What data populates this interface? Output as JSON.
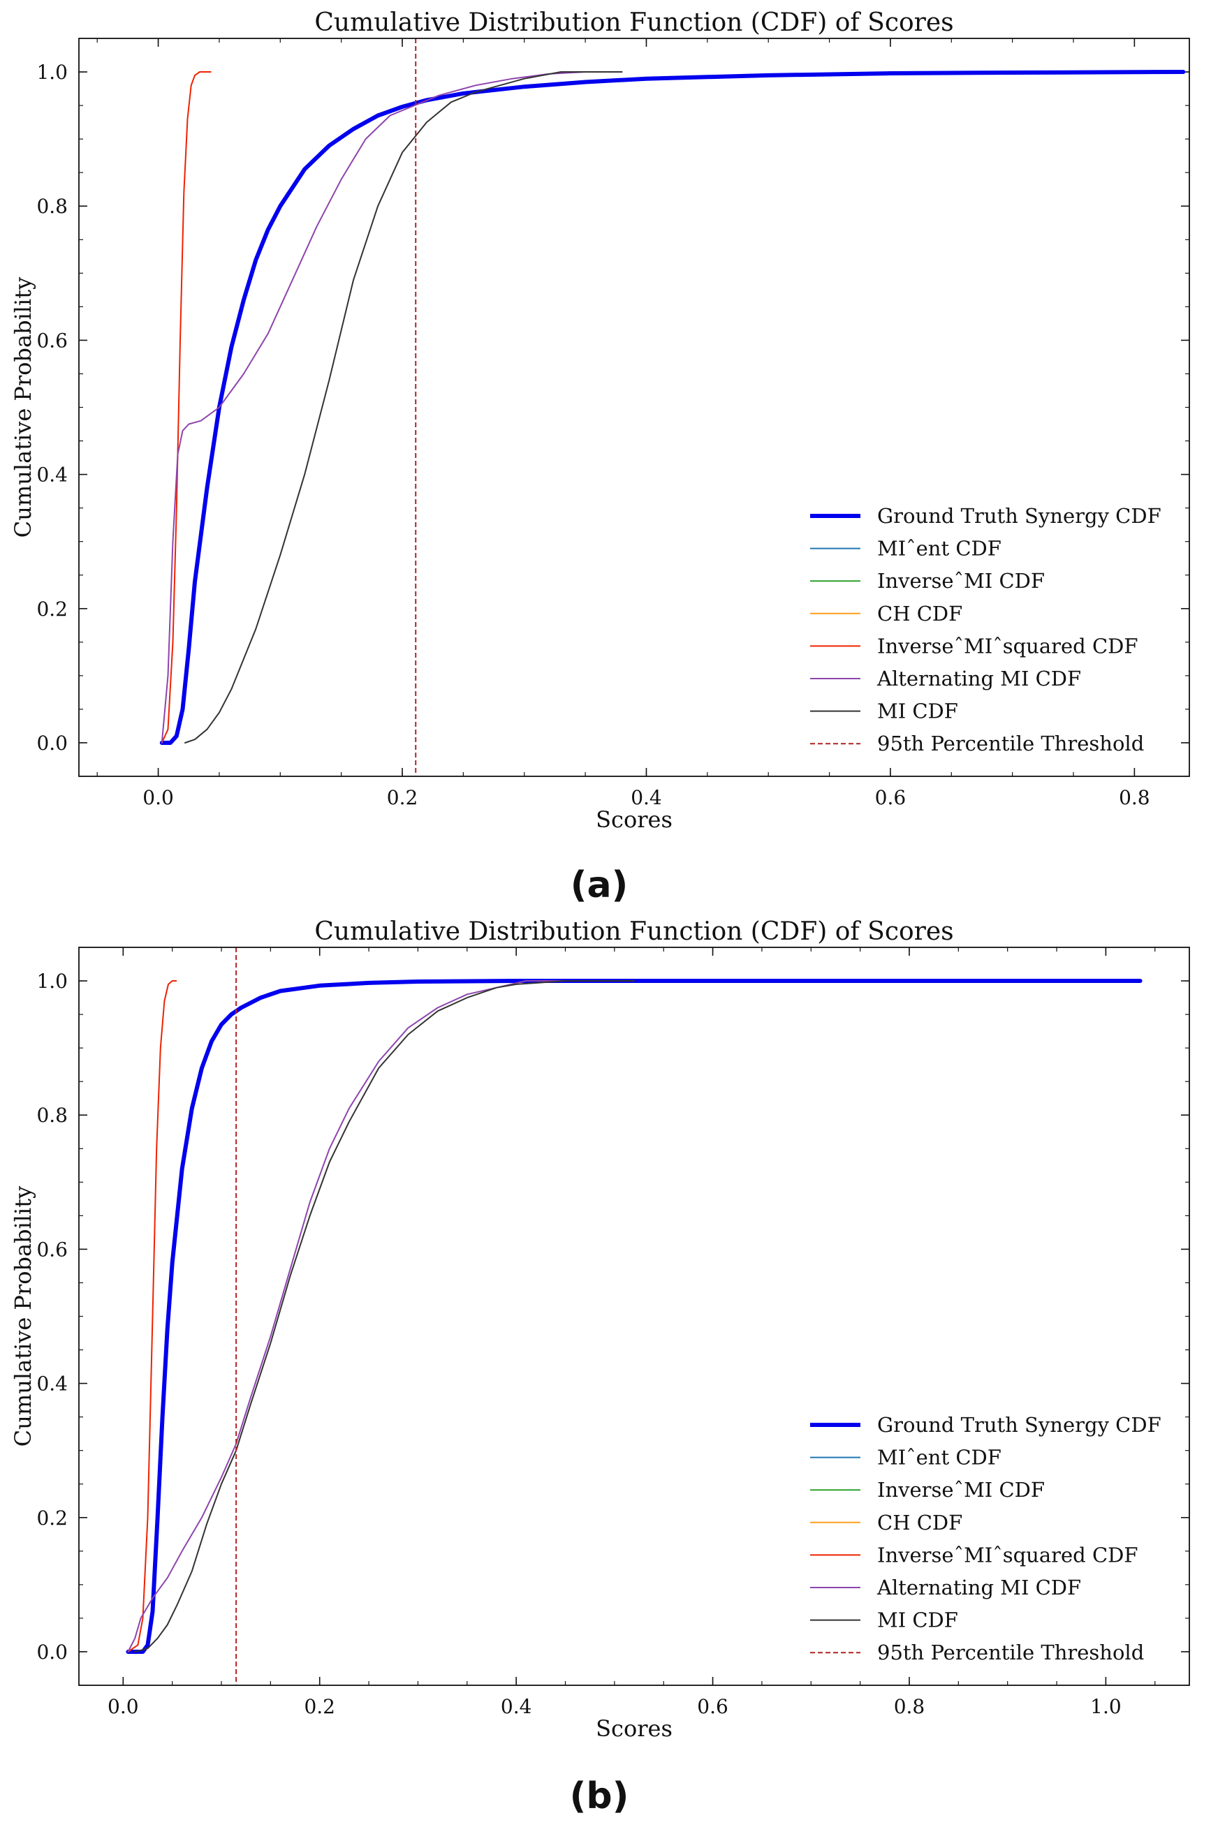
{
  "chart_data": [
    {
      "type": "line",
      "panel_label": "(a)",
      "title": "Cumulative Distribution Function (CDF) of Scores",
      "xlabel": "Scores",
      "ylabel": "Cumulative Probability",
      "xlim": [
        -0.065,
        0.845
      ],
      "ylim": [
        -0.05,
        1.05
      ],
      "xticks": [
        0.0,
        0.2,
        0.4,
        0.6,
        0.8
      ],
      "xtick_labels": [
        "0.0",
        "0.2",
        "0.4",
        "0.6",
        "0.8"
      ],
      "yticks": [
        0.0,
        0.2,
        0.4,
        0.6,
        0.8,
        1.0
      ],
      "ytick_labels": [
        "0.0",
        "0.2",
        "0.4",
        "0.6",
        "0.8",
        "1.0"
      ],
      "grid": false,
      "legend_position": "lower-right",
      "threshold": {
        "name": "95th Percentile Threshold",
        "x": 0.211,
        "color": "#b22222"
      },
      "series": [
        {
          "name": "Ground Truth Synergy CDF",
          "color": "#0000ee",
          "width": "thick",
          "x": [
            0.003,
            0.01,
            0.015,
            0.02,
            0.025,
            0.03,
            0.04,
            0.05,
            0.06,
            0.07,
            0.08,
            0.09,
            0.1,
            0.12,
            0.14,
            0.16,
            0.18,
            0.2,
            0.22,
            0.25,
            0.3,
            0.35,
            0.4,
            0.5,
            0.6,
            0.7,
            0.84
          ],
          "y": [
            0.0,
            0.0,
            0.01,
            0.05,
            0.14,
            0.24,
            0.38,
            0.5,
            0.59,
            0.66,
            0.72,
            0.765,
            0.8,
            0.855,
            0.89,
            0.915,
            0.935,
            0.948,
            0.958,
            0.968,
            0.978,
            0.985,
            0.99,
            0.995,
            0.998,
            0.999,
            1.0
          ]
        },
        {
          "name": "MIˆent CDF",
          "color": "#1f77b4",
          "width": "thin",
          "x": [],
          "y": []
        },
        {
          "name": "InverseˆMI CDF",
          "color": "#2ca02c",
          "width": "thin",
          "x": [],
          "y": []
        },
        {
          "name": "CH CDF",
          "color": "#ff9f1c",
          "width": "thin",
          "x": [],
          "y": []
        },
        {
          "name": "InverseˆMIˆsquared CDF",
          "color": "#ee2200",
          "width": "thin",
          "x": [
            0.003,
            0.008,
            0.012,
            0.015,
            0.018,
            0.021,
            0.024,
            0.027,
            0.03,
            0.034,
            0.038,
            0.043
          ],
          "y": [
            0.0,
            0.02,
            0.15,
            0.35,
            0.6,
            0.82,
            0.93,
            0.98,
            0.995,
            1.0,
            1.0,
            1.0
          ]
        },
        {
          "name": "Alternating MI CDF",
          "color": "#8e44ad",
          "width": "thin",
          "x": [
            0.003,
            0.008,
            0.012,
            0.016,
            0.02,
            0.025,
            0.035,
            0.05,
            0.07,
            0.09,
            0.11,
            0.13,
            0.15,
            0.17,
            0.19,
            0.21,
            0.23,
            0.26,
            0.29,
            0.32,
            0.35,
            0.38
          ],
          "y": [
            0.0,
            0.1,
            0.3,
            0.43,
            0.465,
            0.475,
            0.48,
            0.5,
            0.55,
            0.61,
            0.69,
            0.77,
            0.84,
            0.9,
            0.935,
            0.95,
            0.965,
            0.98,
            0.99,
            0.997,
            1.0,
            1.0
          ]
        },
        {
          "name": "MI CDF",
          "color": "#333333",
          "width": "thin",
          "x": [
            0.022,
            0.03,
            0.04,
            0.05,
            0.06,
            0.08,
            0.1,
            0.12,
            0.14,
            0.16,
            0.18,
            0.2,
            0.22,
            0.24,
            0.26,
            0.28,
            0.3,
            0.33,
            0.36,
            0.38
          ],
          "y": [
            0.0,
            0.005,
            0.02,
            0.045,
            0.08,
            0.17,
            0.28,
            0.4,
            0.54,
            0.69,
            0.8,
            0.88,
            0.925,
            0.955,
            0.97,
            0.98,
            0.99,
            1.0,
            1.0,
            1.0
          ]
        },
        {
          "name": "95th Percentile Threshold",
          "color": "#b22222",
          "width": "dashed",
          "legend_only": true,
          "x": [],
          "y": []
        }
      ]
    },
    {
      "type": "line",
      "panel_label": "(b)",
      "title": "Cumulative Distribution Function (CDF) of Scores",
      "xlabel": "Scores",
      "ylabel": "Cumulative Probability",
      "xlim": [
        -0.045,
        1.085
      ],
      "ylim": [
        -0.05,
        1.05
      ],
      "xticks": [
        0.0,
        0.2,
        0.4,
        0.6,
        0.8,
        1.0
      ],
      "xtick_labels": [
        "0.0",
        "0.2",
        "0.4",
        "0.6",
        "0.8",
        "1.0"
      ],
      "yticks": [
        0.0,
        0.2,
        0.4,
        0.6,
        0.8,
        1.0
      ],
      "ytick_labels": [
        "0.0",
        "0.2",
        "0.4",
        "0.6",
        "0.8",
        "1.0"
      ],
      "grid": false,
      "legend_position": "lower-right",
      "threshold": {
        "name": "95th Percentile Threshold",
        "x": 0.115,
        "color": "#b22222"
      },
      "series": [
        {
          "name": "Ground Truth Synergy CDF",
          "color": "#0000ee",
          "width": "thick",
          "x": [
            0.005,
            0.02,
            0.025,
            0.03,
            0.035,
            0.04,
            0.045,
            0.05,
            0.06,
            0.07,
            0.08,
            0.09,
            0.1,
            0.11,
            0.12,
            0.14,
            0.16,
            0.2,
            0.25,
            0.3,
            0.4,
            0.6,
            0.8,
            1.035
          ],
          "y": [
            0.0,
            0.0,
            0.01,
            0.06,
            0.2,
            0.35,
            0.48,
            0.58,
            0.72,
            0.81,
            0.87,
            0.91,
            0.935,
            0.95,
            0.96,
            0.975,
            0.985,
            0.993,
            0.997,
            0.999,
            1.0,
            1.0,
            1.0,
            1.0
          ]
        },
        {
          "name": "MIˆent CDF",
          "color": "#1f77b4",
          "width": "thin",
          "x": [],
          "y": []
        },
        {
          "name": "InverseˆMI CDF",
          "color": "#2ca02c",
          "width": "thin",
          "x": [],
          "y": []
        },
        {
          "name": "CH CDF",
          "color": "#ff9f1c",
          "width": "thin",
          "x": [],
          "y": []
        },
        {
          "name": "InverseˆMIˆsquared CDF",
          "color": "#ee2200",
          "width": "thin",
          "x": [
            0.005,
            0.015,
            0.02,
            0.025,
            0.03,
            0.034,
            0.038,
            0.042,
            0.046,
            0.05,
            0.054
          ],
          "y": [
            0.0,
            0.01,
            0.05,
            0.2,
            0.5,
            0.75,
            0.9,
            0.97,
            0.995,
            1.0,
            1.0
          ]
        },
        {
          "name": "Alternating MI CDF",
          "color": "#8e44ad",
          "width": "thin",
          "x": [
            0.005,
            0.012,
            0.018,
            0.022,
            0.03,
            0.045,
            0.06,
            0.08,
            0.1,
            0.115,
            0.13,
            0.15,
            0.17,
            0.19,
            0.21,
            0.23,
            0.26,
            0.29,
            0.32,
            0.35,
            0.38,
            0.41,
            0.45,
            0.52
          ],
          "y": [
            0.0,
            0.02,
            0.05,
            0.06,
            0.08,
            0.11,
            0.15,
            0.2,
            0.26,
            0.31,
            0.38,
            0.47,
            0.57,
            0.67,
            0.75,
            0.81,
            0.88,
            0.93,
            0.96,
            0.98,
            0.99,
            1.0,
            1.0,
            1.0
          ]
        },
        {
          "name": "MI CDF",
          "color": "#333333",
          "width": "thin",
          "x": [
            0.012,
            0.025,
            0.035,
            0.045,
            0.055,
            0.07,
            0.085,
            0.1,
            0.115,
            0.13,
            0.15,
            0.17,
            0.19,
            0.21,
            0.23,
            0.26,
            0.29,
            0.32,
            0.35,
            0.38,
            0.4,
            0.45,
            0.52
          ],
          "y": [
            0.0,
            0.005,
            0.02,
            0.04,
            0.07,
            0.12,
            0.19,
            0.25,
            0.3,
            0.37,
            0.46,
            0.56,
            0.65,
            0.73,
            0.79,
            0.87,
            0.92,
            0.955,
            0.975,
            0.99,
            0.995,
            1.0,
            1.0
          ]
        },
        {
          "name": "95th Percentile Threshold",
          "color": "#b22222",
          "width": "dashed",
          "legend_only": true,
          "x": [],
          "y": []
        }
      ]
    }
  ]
}
